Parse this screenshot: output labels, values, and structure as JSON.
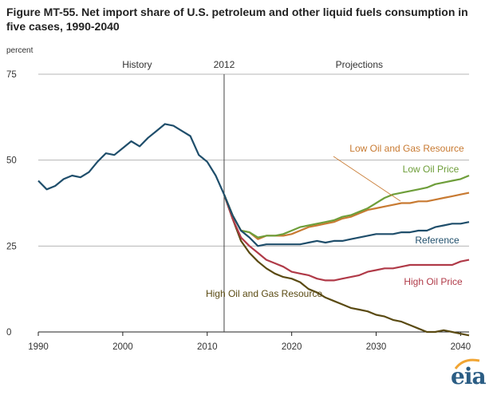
{
  "header": {
    "title": "Figure MT-55. Net import share of U.S. petroleum and other liquid fuels consumption in five cases, 1990-2040"
  },
  "logo": {
    "text": "eia"
  },
  "chart_data": {
    "type": "line",
    "ylabel": "percent",
    "xlim": [
      1990,
      2041
    ],
    "ylim": [
      0,
      75
    ],
    "xticks": [
      1990,
      2000,
      2010,
      2020,
      2030,
      2040
    ],
    "yticks": [
      0,
      25,
      50,
      75
    ],
    "grid": "horizontal",
    "divider_year": 2012,
    "divider_label": "2012",
    "regions": {
      "history": "History",
      "projections": "Projections"
    },
    "series": [
      {
        "name": "History",
        "color": "#1f4e6b",
        "x": [
          1990,
          1991,
          1992,
          1993,
          1994,
          1995,
          1996,
          1997,
          1998,
          1999,
          2000,
          2001,
          2002,
          2003,
          2004,
          2005,
          2006,
          2007,
          2008,
          2009,
          2010,
          2011,
          2012
        ],
        "y": [
          44,
          41.5,
          42.5,
          44.5,
          45.5,
          45,
          46.5,
          49.5,
          52,
          51.5,
          53.5,
          55.5,
          54,
          56.5,
          58.5,
          60.5,
          60,
          58.5,
          57,
          51.5,
          49.5,
          45.5,
          40
        ]
      },
      {
        "name": "Reference",
        "color": "#1f4e6b",
        "x": [
          2012,
          2013,
          2014,
          2015,
          2016,
          2017,
          2018,
          2019,
          2020,
          2021,
          2022,
          2023,
          2024,
          2025,
          2026,
          2027,
          2028,
          2029,
          2030,
          2031,
          2032,
          2033,
          2034,
          2035,
          2036,
          2037,
          2038,
          2039,
          2040,
          2041
        ],
        "y": [
          40,
          34,
          29.5,
          27.5,
          25,
          25.5,
          25.5,
          25.5,
          25.5,
          25.5,
          26,
          26.5,
          26,
          26.5,
          26.5,
          27,
          27.5,
          28,
          28.5,
          28.5,
          28.5,
          29,
          29,
          29.5,
          29.5,
          30.5,
          31,
          31.5,
          31.5,
          32
        ]
      },
      {
        "name": "Low Oil Price",
        "color": "#6e9e3a",
        "x": [
          2012,
          2013,
          2014,
          2015,
          2016,
          2017,
          2018,
          2019,
          2020,
          2021,
          2022,
          2023,
          2024,
          2025,
          2026,
          2027,
          2028,
          2029,
          2030,
          2031,
          2032,
          2033,
          2034,
          2035,
          2036,
          2037,
          2038,
          2039,
          2040,
          2041
        ],
        "y": [
          40,
          34,
          29.5,
          29,
          27.5,
          28,
          28,
          28.5,
          29.5,
          30.5,
          31,
          31.5,
          32,
          32.5,
          33.5,
          34,
          35,
          36,
          37.5,
          39,
          40,
          40.5,
          41,
          41.5,
          42,
          43,
          43.5,
          44,
          44.5,
          45.5
        ]
      },
      {
        "name": "Low Oil and Gas Resource",
        "color": "#c87a32",
        "x": [
          2012,
          2013,
          2014,
          2015,
          2016,
          2017,
          2018,
          2019,
          2020,
          2021,
          2022,
          2023,
          2024,
          2025,
          2026,
          2027,
          2028,
          2029,
          2030,
          2031,
          2032,
          2033,
          2034,
          2035,
          2036,
          2037,
          2038,
          2039,
          2040,
          2041
        ],
        "y": [
          40,
          34,
          29.5,
          29,
          27,
          28,
          28,
          28,
          28.5,
          29.5,
          30.5,
          31,
          31.5,
          32,
          33,
          33.5,
          34.5,
          35.5,
          36,
          36.5,
          37,
          37.5,
          37.5,
          38,
          38,
          38.5,
          39,
          39.5,
          40,
          40.5
        ]
      },
      {
        "name": "High Oil Price",
        "color": "#b03a48",
        "x": [
          2012,
          2013,
          2014,
          2015,
          2016,
          2017,
          2018,
          2019,
          2020,
          2021,
          2022,
          2023,
          2024,
          2025,
          2026,
          2027,
          2028,
          2029,
          2030,
          2031,
          2032,
          2033,
          2034,
          2035,
          2036,
          2037,
          2038,
          2039,
          2040,
          2041
        ],
        "y": [
          40,
          33,
          27.5,
          25,
          23,
          21,
          20,
          19,
          17.5,
          17,
          16.5,
          15.5,
          15,
          15,
          15.5,
          16,
          16.5,
          17.5,
          18,
          18.5,
          18.5,
          19,
          19.5,
          19.5,
          19.5,
          19.5,
          19.5,
          19.5,
          20.5,
          21
        ]
      },
      {
        "name": "High Oil and Gas Resource",
        "color": "#5a4a12",
        "x": [
          2012,
          2013,
          2014,
          2015,
          2016,
          2017,
          2018,
          2019,
          2020,
          2021,
          2022,
          2023,
          2024,
          2025,
          2026,
          2027,
          2028,
          2029,
          2030,
          2031,
          2032,
          2033,
          2034,
          2035,
          2036,
          2037,
          2038,
          2039,
          2040,
          2041
        ],
        "y": [
          40,
          33,
          26.5,
          23,
          20.5,
          18.5,
          17,
          16,
          15.5,
          14.5,
          12.5,
          11.5,
          10,
          9,
          8,
          7,
          6.5,
          6,
          5,
          4.5,
          3.5,
          3,
          2,
          1,
          0,
          0,
          0.5,
          0,
          -0.5,
          -1
        ]
      }
    ]
  }
}
